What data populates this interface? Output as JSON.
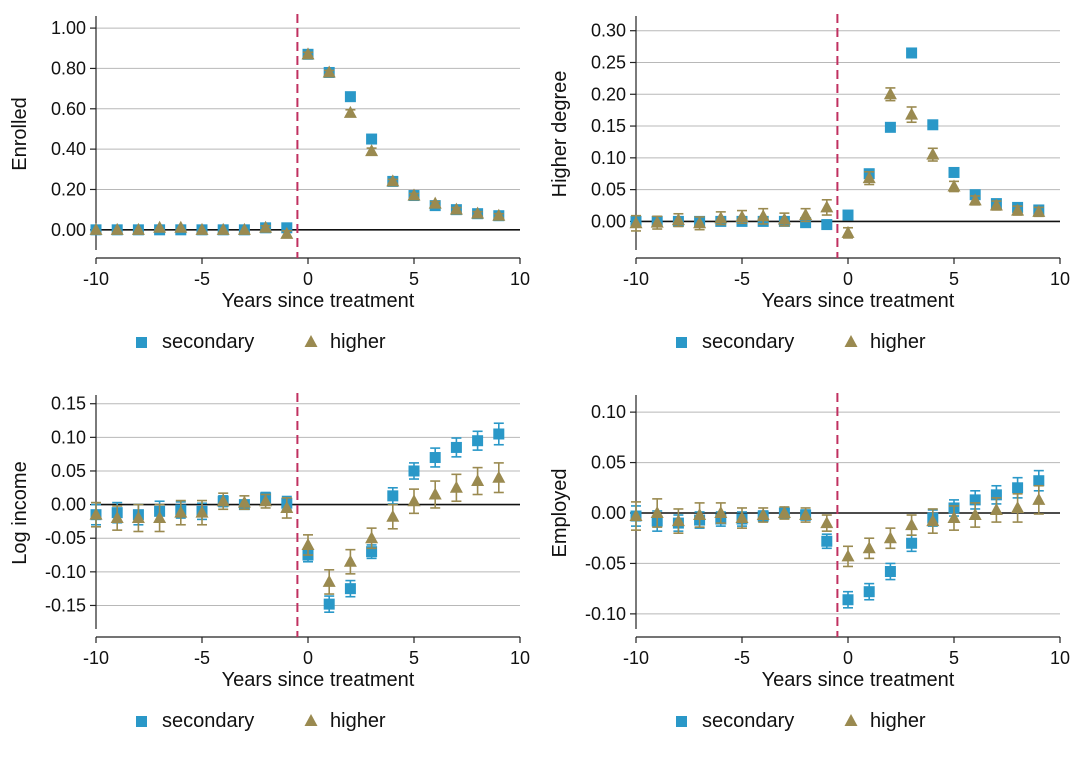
{
  "colors": {
    "secondary": "#2a98c8",
    "higher": "#9a8a50",
    "treatment_line": "#c03060",
    "zero_line": "#111111",
    "grid": "#b8b8b8"
  },
  "legend": {
    "secondary_label": "secondary",
    "higher_label": "higher",
    "secondary_icon": "square-marker-icon",
    "higher_icon": "triangle-marker-icon"
  },
  "chart_data": [
    {
      "type": "scatter",
      "ylabel": "Enrolled",
      "xlabel": "Years since treatment",
      "xlim": [
        -10,
        10
      ],
      "ylim": [
        -0.1,
        1.05
      ],
      "xticks": [
        -10,
        -5,
        0,
        5,
        10
      ],
      "xtick_labels": [
        "-10",
        "-5",
        "0",
        "5",
        "10"
      ],
      "yticks": [
        0,
        0.2,
        0.4,
        0.6,
        0.8,
        1.0
      ],
      "ytick_labels": [
        "0.00",
        "0.20",
        "0.40",
        "0.60",
        "0.80",
        "1.00"
      ],
      "treatment_x": -0.5,
      "grid": true,
      "legend_position": "bottom",
      "series": [
        {
          "name": "secondary",
          "marker": "square",
          "x": [
            -10,
            -9,
            -8,
            -7,
            -6,
            -5,
            -4,
            -3,
            -2,
            -1,
            0,
            1,
            2,
            3,
            4,
            5,
            6,
            7,
            8,
            9
          ],
          "y": [
            0,
            0,
            0,
            0,
            0,
            0,
            0,
            0,
            0.01,
            0.01,
            0.87,
            0.78,
            0.66,
            0.45,
            0.24,
            0.17,
            0.12,
            0.1,
            0.08,
            0.07
          ],
          "err": [
            0.005,
            0.005,
            0.005,
            0.005,
            0.005,
            0.005,
            0.005,
            0.005,
            0.005,
            0.005,
            0.01,
            0.01,
            0.01,
            0.01,
            0.01,
            0.01,
            0.01,
            0.01,
            0.01,
            0.01
          ]
        },
        {
          "name": "higher",
          "marker": "triangle",
          "x": [
            -10,
            -9,
            -8,
            -7,
            -6,
            -5,
            -4,
            -3,
            -2,
            -1,
            0,
            1,
            2,
            3,
            4,
            5,
            6,
            7,
            8,
            9
          ],
          "y": [
            0,
            0,
            0,
            0.01,
            0.01,
            0,
            0,
            0,
            0.01,
            -0.02,
            0.87,
            0.78,
            0.58,
            0.39,
            0.24,
            0.17,
            0.13,
            0.1,
            0.08,
            0.07
          ],
          "err": [
            0.005,
            0.005,
            0.005,
            0.005,
            0.005,
            0.005,
            0.005,
            0.005,
            0.01,
            0.015,
            0.01,
            0.01,
            0.015,
            0.015,
            0.01,
            0.01,
            0.01,
            0.01,
            0.01,
            0.01
          ]
        }
      ]
    },
    {
      "type": "scatter",
      "ylabel": "Higher degree",
      "xlabel": "Years since treatment",
      "xlim": [
        -10,
        10
      ],
      "ylim": [
        -0.045,
        0.32
      ],
      "xticks": [
        -10,
        -5,
        0,
        5,
        10
      ],
      "xtick_labels": [
        "-10",
        "-5",
        "0",
        "5",
        "10"
      ],
      "yticks": [
        0,
        0.05,
        0.1,
        0.15,
        0.2,
        0.25,
        0.3
      ],
      "ytick_labels": [
        "0.00",
        "0.05",
        "0.10",
        "0.15",
        "0.20",
        "0.25",
        "0.30"
      ],
      "treatment_x": -0.5,
      "grid": true,
      "legend_position": "bottom",
      "series": [
        {
          "name": "secondary",
          "marker": "square",
          "x": [
            -10,
            -9,
            -8,
            -7,
            -6,
            -5,
            -4,
            -3,
            -2,
            -1,
            0,
            1,
            2,
            3,
            4,
            5,
            6,
            7,
            8,
            9
          ],
          "y": [
            0,
            0,
            0,
            0,
            0,
            0,
            0,
            0,
            -0.002,
            -0.005,
            0.01,
            0.075,
            0.148,
            0.265,
            0.152,
            0.077,
            0.042,
            0.028,
            0.022,
            0.018
          ],
          "err": [
            0.003,
            0.003,
            0.003,
            0.003,
            0.003,
            0.003,
            0.003,
            0.003,
            0.003,
            0.003,
            0.004,
            0.005,
            0.006,
            0.007,
            0.006,
            0.005,
            0.004,
            0.004,
            0.004,
            0.004
          ]
        },
        {
          "name": "higher",
          "marker": "triangle",
          "x": [
            -10,
            -9,
            -8,
            -7,
            -6,
            -5,
            -4,
            -3,
            -2,
            -1,
            0,
            1,
            2,
            3,
            4,
            5,
            6,
            7,
            8,
            9
          ],
          "y": [
            -0.003,
            -0.002,
            0.002,
            -0.003,
            0.005,
            0.007,
            0.008,
            0.003,
            0.01,
            0.022,
            -0.018,
            0.068,
            0.2,
            0.168,
            0.105,
            0.055,
            0.033,
            0.025,
            0.017,
            0.015
          ],
          "err": [
            0.012,
            0.01,
            0.01,
            0.01,
            0.01,
            0.01,
            0.012,
            0.01,
            0.01,
            0.012,
            0.008,
            0.01,
            0.01,
            0.012,
            0.01,
            0.008,
            0.007,
            0.007,
            0.007,
            0.007
          ]
        }
      ]
    },
    {
      "type": "scatter",
      "ylabel": "Log income",
      "xlabel": "Years since treatment",
      "xlim": [
        -10,
        10
      ],
      "ylim": [
        -0.185,
        0.16
      ],
      "xticks": [
        -10,
        -5,
        0,
        5,
        10
      ],
      "xtick_labels": [
        "-10",
        "-5",
        "0",
        "5",
        "10"
      ],
      "yticks": [
        -0.15,
        -0.1,
        -0.05,
        0,
        0.05,
        0.1,
        0.15
      ],
      "ytick_labels": [
        "-0.15",
        "-0.10",
        "-0.05",
        "0.00",
        "0.05",
        "0.10",
        "0.15"
      ],
      "treatment_x": -0.5,
      "grid": true,
      "legend_position": "bottom",
      "series": [
        {
          "name": "secondary",
          "marker": "square",
          "x": [
            -10,
            -9,
            -8,
            -7,
            -6,
            -5,
            -4,
            -3,
            -2,
            -1,
            0,
            1,
            2,
            3,
            4,
            5,
            6,
            7,
            8,
            9
          ],
          "y": [
            -0.015,
            -0.012,
            -0.015,
            -0.01,
            -0.008,
            -0.01,
            0.005,
            0.0,
            0.01,
            0.002,
            -0.075,
            -0.148,
            -0.125,
            -0.07,
            0.013,
            0.05,
            0.07,
            0.085,
            0.095,
            0.105
          ],
          "err": [
            0.015,
            0.015,
            0.015,
            0.015,
            0.012,
            0.012,
            0.008,
            0.006,
            0.008,
            0.01,
            0.01,
            0.012,
            0.012,
            0.01,
            0.012,
            0.012,
            0.014,
            0.014,
            0.014,
            0.016
          ]
        },
        {
          "name": "higher",
          "marker": "triangle",
          "x": [
            -10,
            -9,
            -8,
            -7,
            -6,
            -5,
            -4,
            -3,
            -2,
            -1,
            0,
            1,
            2,
            3,
            4,
            5,
            6,
            7,
            8,
            9
          ],
          "y": [
            -0.015,
            -0.02,
            -0.02,
            -0.02,
            -0.012,
            -0.012,
            0.005,
            0.003,
            0.005,
            -0.005,
            -0.06,
            -0.115,
            -0.085,
            -0.05,
            -0.018,
            0.005,
            0.015,
            0.025,
            0.035,
            0.04
          ],
          "err": [
            0.018,
            0.018,
            0.02,
            0.02,
            0.018,
            0.018,
            0.012,
            0.01,
            0.01,
            0.015,
            0.015,
            0.018,
            0.018,
            0.015,
            0.018,
            0.018,
            0.02,
            0.02,
            0.02,
            0.022
          ]
        }
      ]
    },
    {
      "type": "scatter",
      "ylabel": "Employed",
      "xlabel": "Years since treatment",
      "xlim": [
        -10,
        10
      ],
      "ylim": [
        -0.115,
        0.115
      ],
      "xticks": [
        -10,
        -5,
        0,
        5,
        10
      ],
      "xtick_labels": [
        "-10",
        "-5",
        "0",
        "5",
        "10"
      ],
      "yticks": [
        -0.1,
        -0.05,
        0,
        0.05,
        0.1
      ],
      "ytick_labels": [
        "-0.10",
        "-0.05",
        "0.00",
        "0.05",
        "0.10"
      ],
      "treatment_x": -0.5,
      "grid": true,
      "legend_position": "bottom",
      "series": [
        {
          "name": "secondary",
          "marker": "square",
          "x": [
            -10,
            -9,
            -8,
            -7,
            -6,
            -5,
            -4,
            -3,
            -2,
            -1,
            0,
            1,
            2,
            3,
            4,
            5,
            6,
            7,
            8,
            9
          ],
          "y": [
            -0.003,
            -0.008,
            -0.01,
            -0.007,
            -0.006,
            -0.006,
            -0.003,
            0.0,
            -0.002,
            -0.028,
            -0.086,
            -0.078,
            -0.058,
            -0.03,
            -0.005,
            0.005,
            0.013,
            0.018,
            0.025,
            0.032
          ],
          "err": [
            0.01,
            0.01,
            0.008,
            0.008,
            0.007,
            0.007,
            0.005,
            0.004,
            0.005,
            0.007,
            0.008,
            0.008,
            0.008,
            0.008,
            0.008,
            0.008,
            0.009,
            0.009,
            0.01,
            0.01
          ]
        },
        {
          "name": "higher",
          "marker": "triangle",
          "x": [
            -10,
            -9,
            -8,
            -7,
            -6,
            -5,
            -4,
            -3,
            -2,
            -1,
            0,
            1,
            2,
            3,
            4,
            5,
            6,
            7,
            8,
            9
          ],
          "y": [
            -0.003,
            0.0,
            -0.008,
            -0.002,
            0.0,
            -0.005,
            -0.002,
            0.0,
            -0.002,
            -0.01,
            -0.043,
            -0.035,
            -0.025,
            -0.012,
            -0.008,
            -0.005,
            -0.002,
            0.003,
            0.005,
            0.013
          ],
          "err": [
            0.014,
            0.014,
            0.012,
            0.012,
            0.01,
            0.01,
            0.007,
            0.006,
            0.007,
            0.008,
            0.01,
            0.01,
            0.01,
            0.01,
            0.012,
            0.012,
            0.012,
            0.012,
            0.014,
            0.014
          ]
        }
      ]
    }
  ]
}
